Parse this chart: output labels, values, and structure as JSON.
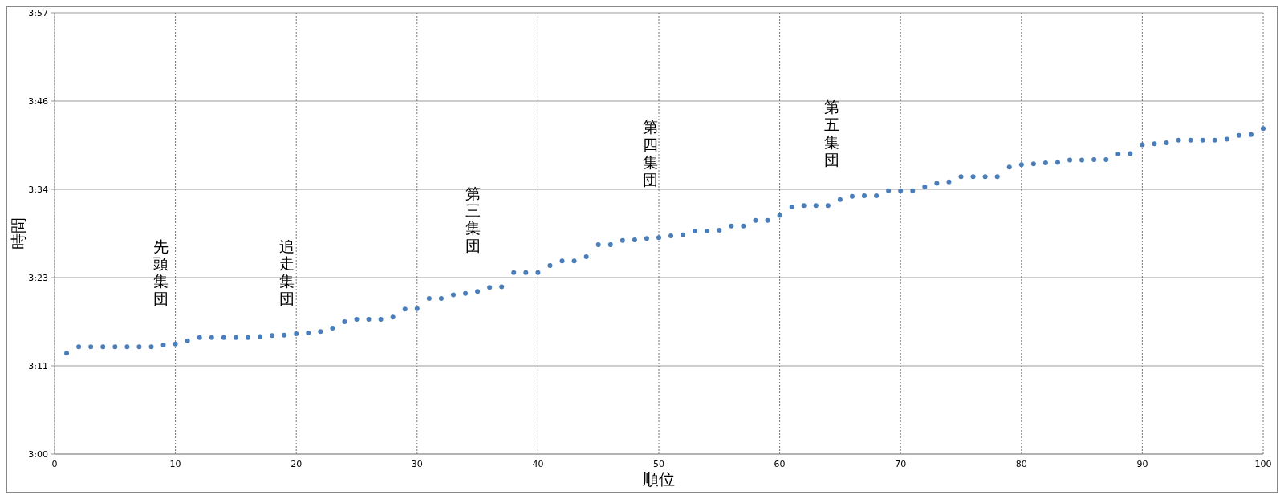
{
  "chart_data": {
    "type": "scatter",
    "xlabel": "順位",
    "ylabel": "時間",
    "x": [
      1,
      2,
      3,
      4,
      5,
      6,
      7,
      8,
      9,
      10,
      11,
      12,
      13,
      14,
      15,
      16,
      17,
      18,
      19,
      20,
      21,
      22,
      23,
      24,
      25,
      26,
      27,
      28,
      29,
      30,
      31,
      32,
      33,
      34,
      35,
      36,
      37,
      38,
      39,
      40,
      41,
      42,
      43,
      44,
      45,
      46,
      47,
      48,
      49,
      50,
      51,
      52,
      53,
      54,
      55,
      56,
      57,
      58,
      59,
      60,
      61,
      62,
      63,
      64,
      65,
      66,
      67,
      68,
      69,
      70,
      71,
      72,
      73,
      74,
      75,
      76,
      77,
      78,
      79,
      80,
      81,
      82,
      83,
      84,
      85,
      86,
      87,
      88,
      89,
      90,
      91,
      92,
      93,
      94,
      95,
      96,
      97,
      98,
      99,
      100
    ],
    "series": [
      {
        "color": "#4a7ebb",
        "values": [
          3.217,
          3.231,
          3.231,
          3.231,
          3.231,
          3.231,
          3.231,
          3.231,
          3.235,
          3.237,
          3.244,
          3.251,
          3.251,
          3.251,
          3.251,
          3.251,
          3.253,
          3.255,
          3.256,
          3.259,
          3.261,
          3.264,
          3.271,
          3.285,
          3.29,
          3.29,
          3.29,
          3.295,
          3.312,
          3.313,
          3.335,
          3.335,
          3.343,
          3.346,
          3.35,
          3.359,
          3.36,
          3.391,
          3.391,
          3.391,
          3.406,
          3.416,
          3.416,
          3.425,
          3.451,
          3.451,
          3.46,
          3.461,
          3.464,
          3.466,
          3.47,
          3.472,
          3.48,
          3.48,
          3.482,
          3.491,
          3.491,
          3.503,
          3.503,
          3.514,
          3.532,
          3.535,
          3.535,
          3.535,
          3.548,
          3.555,
          3.556,
          3.556,
          3.567,
          3.567,
          3.567,
          3.575,
          3.583,
          3.586,
          3.597,
          3.597,
          3.597,
          3.597,
          3.618,
          3.623,
          3.625,
          3.627,
          3.628,
          3.633,
          3.633,
          3.634,
          3.634,
          3.646,
          3.647,
          3.666,
          3.668,
          3.67,
          3.676,
          3.676,
          3.676,
          3.676,
          3.678,
          3.686,
          3.688,
          3.701
        ]
      }
    ],
    "xlim": [
      0,
      100
    ],
    "xticks": [
      0,
      10,
      20,
      30,
      40,
      50,
      60,
      70,
      80,
      90,
      100
    ],
    "ylim": [
      3.0,
      3.95
    ],
    "yticks": [
      {
        "value": 3.0,
        "label": "3:00"
      },
      {
        "value": 3.19,
        "label": "3:11"
      },
      {
        "value": 3.38,
        "label": "3:23"
      },
      {
        "value": 3.57,
        "label": "3:34"
      },
      {
        "value": 3.76,
        "label": "3:46"
      },
      {
        "value": 3.95,
        "label": "3:57"
      }
    ],
    "grid": true,
    "marker": "circle",
    "annotations": [
      "先頭集団",
      "追走集団",
      "第三集団",
      "第四集団",
      "第五集団"
    ]
  }
}
